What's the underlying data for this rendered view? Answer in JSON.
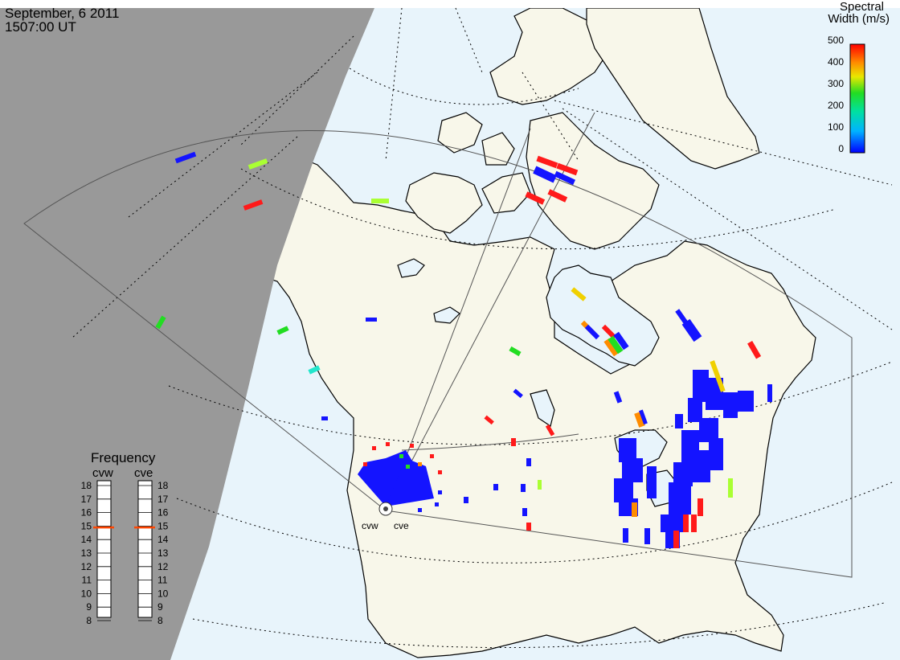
{
  "header": {
    "date": "September, 6 2011",
    "time": "1507:00 UT"
  },
  "colorbar": {
    "title_line1": "Spectral",
    "title_line2": "Width (m/s)",
    "ticks": [
      "500",
      "400",
      "300",
      "200",
      "100",
      "0"
    ]
  },
  "frequency": {
    "title": "Frequency",
    "left_label": "cvw",
    "right_label": "cve",
    "values": [
      "18",
      "17",
      "16",
      "15",
      "14",
      "13",
      "12",
      "11",
      "10",
      "9",
      "8"
    ],
    "cvw_marker": 14.9,
    "cve_marker": 14.9,
    "marker_color": "#ff4500"
  },
  "radars": {
    "cvw": "cvw",
    "cve": "cve"
  },
  "colors": {
    "night": "#999999",
    "ocean": "#e8f4fb",
    "land": "#f8f7ea",
    "blue": "#1414ff",
    "red": "#ff1a1a",
    "orange": "#ff8c00",
    "yellow": "#f0d000",
    "green": "#22dd22",
    "lime": "#aaff33",
    "cyan": "#22e6cc"
  }
}
